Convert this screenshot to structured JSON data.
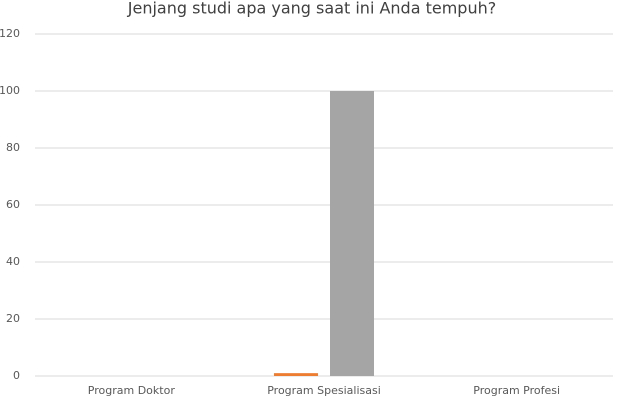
{
  "chart_data": {
    "type": "bar",
    "title": "Jenjang studi apa yang saat ini Anda tempuh?",
    "categories": [
      "Program Doktor",
      "Program Spesialisasi",
      "Program Profesi"
    ],
    "series": [
      {
        "color": "#ed7d31",
        "values": [
          0,
          1,
          0
        ]
      },
      {
        "color": "#a5a5a5",
        "values": [
          0,
          100,
          0
        ]
      }
    ],
    "ylim": [
      0,
      120
    ],
    "yticks": [
      0,
      20,
      40,
      60,
      80,
      100,
      120
    ],
    "grid": true
  }
}
